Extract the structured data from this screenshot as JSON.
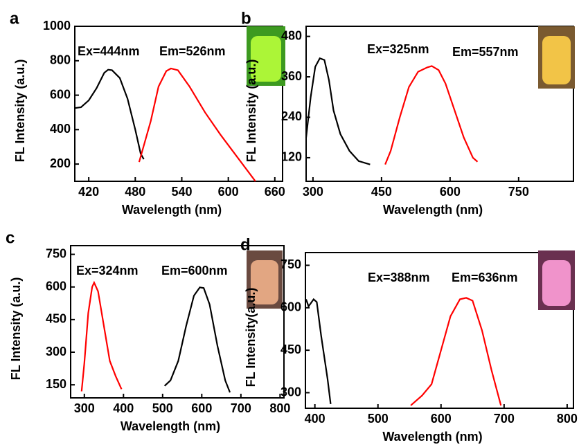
{
  "chart_data": [
    {
      "type": "line",
      "panel": "a",
      "annotations": [
        "Ex=444nm",
        "Em=526nm"
      ],
      "y_label": "FL Intensity (a.u.)",
      "x_label": "Wavelength (nm)",
      "xlim": [
        402,
        670
      ],
      "ylim": [
        100,
        1000
      ],
      "xticks": [
        420,
        480,
        540,
        600,
        660
      ],
      "yticks": [
        200,
        400,
        600,
        800,
        1000
      ],
      "series": [
        {
          "color": "#000000",
          "x": [
            402,
            410,
            420,
            430,
            440,
            445,
            450,
            460,
            470,
            480,
            487,
            491
          ],
          "values": [
            525,
            530,
            570,
            640,
            730,
            748,
            745,
            700,
            580,
            400,
            260,
            228
          ]
        },
        {
          "color": "#ff0000",
          "x": [
            485,
            500,
            510,
            520,
            526,
            535,
            550,
            570,
            590,
            610,
            630,
            635
          ],
          "values": [
            212,
            450,
            650,
            740,
            755,
            745,
            650,
            500,
            370,
            250,
            130,
            100
          ]
        }
      ]
    },
    {
      "type": "line",
      "panel": "b",
      "annotations": [
        "Ex=325nm",
        "Em=557nm"
      ],
      "y_label": "FL Intensity (a.u.)",
      "x_label": "Wavelength (nm)",
      "xlim": [
        285,
        870
      ],
      "ylim": [
        50,
        510
      ],
      "xticks": [
        300,
        450,
        600,
        750
      ],
      "yticks": [
        120,
        240,
        360,
        480
      ],
      "series": [
        {
          "color": "#000000",
          "x": [
            285,
            295,
            305,
            315,
            325,
            335,
            345,
            360,
            380,
            400,
            425
          ],
          "values": [
            180,
            300,
            390,
            415,
            410,
            350,
            260,
            190,
            140,
            110,
            100
          ]
        },
        {
          "color": "#ff0000",
          "x": [
            458,
            470,
            490,
            510,
            530,
            550,
            560,
            575,
            590,
            610,
            630,
            650,
            660
          ],
          "values": [
            100,
            140,
            240,
            330,
            375,
            388,
            392,
            380,
            340,
            260,
            180,
            120,
            108
          ]
        }
      ]
    },
    {
      "type": "line",
      "panel": "c",
      "annotations": [
        "Ex=324nm",
        "Em=600nm"
      ],
      "y_label": "FL Intensity (a.u.)",
      "x_label": "Wavelength (nm)",
      "xlim": [
        265,
        810
      ],
      "ylim": [
        90,
        790
      ],
      "xticks": [
        300,
        400,
        500,
        600,
        700,
        800
      ],
      "yticks": [
        150,
        300,
        450,
        600,
        750
      ],
      "series": [
        {
          "color": "#ff0000",
          "x": [
            293,
            300,
            310,
            320,
            325,
            335,
            350,
            365,
            380,
            395
          ],
          "values": [
            120,
            250,
            480,
            600,
            620,
            580,
            420,
            260,
            190,
            130
          ]
        },
        {
          "color": "#000000",
          "x": [
            505,
            520,
            540,
            560,
            580,
            595,
            605,
            620,
            640,
            660,
            672
          ],
          "values": [
            145,
            170,
            260,
            420,
            560,
            598,
            595,
            520,
            330,
            170,
            115
          ]
        }
      ]
    },
    {
      "type": "line",
      "panel": "d",
      "annotations": [
        "Ex=388nm",
        "Em=636nm"
      ],
      "y_label": "FL Intensity(a.u.)",
      "x_label": "Wavelength (nm)",
      "xlim": [
        385,
        810
      ],
      "ylim": [
        245,
        795
      ],
      "xticks": [
        400,
        500,
        600,
        700,
        800
      ],
      "yticks": [
        300,
        450,
        600,
        750
      ],
      "series": [
        {
          "color": "#000000",
          "x": [
            386,
            390,
            398,
            403,
            410,
            420,
            425
          ],
          "values": [
            630,
            605,
            630,
            620,
            500,
            350,
            260
          ]
        },
        {
          "color": "#ff0000",
          "x": [
            552,
            570,
            585,
            600,
            615,
            630,
            640,
            650,
            665,
            680,
            695
          ],
          "values": [
            255,
            290,
            330,
            450,
            570,
            630,
            635,
            625,
            520,
            380,
            255
          ]
        }
      ]
    }
  ]
}
